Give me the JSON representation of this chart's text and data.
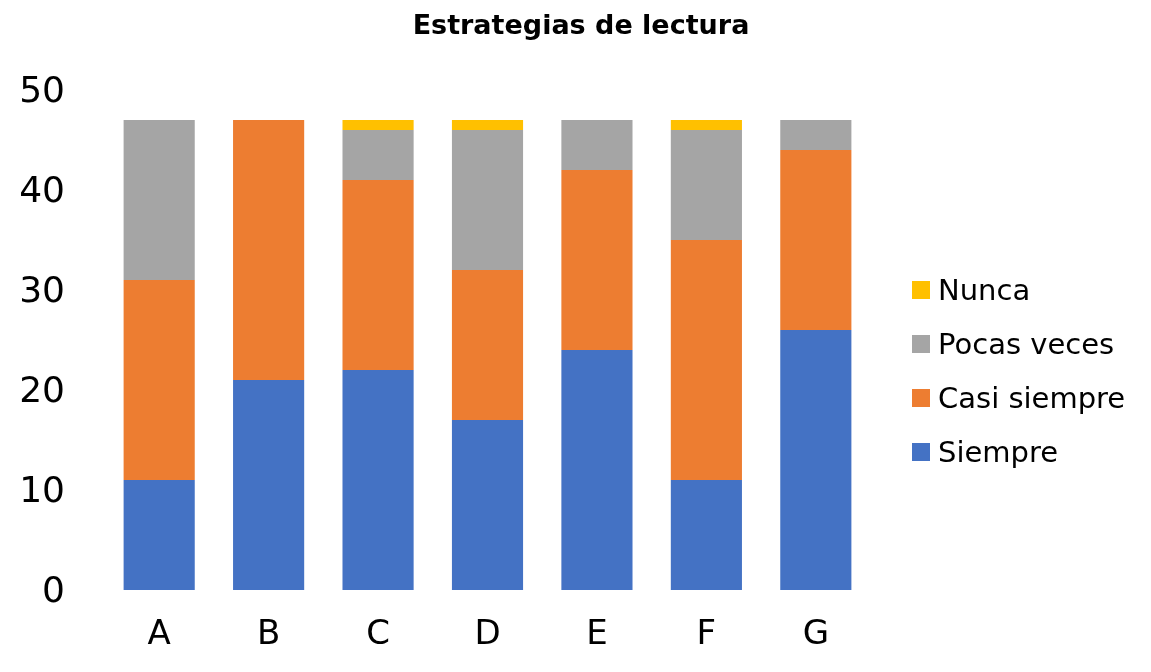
{
  "chart_data": {
    "type": "bar",
    "title": "Estrategias de lectura",
    "stacked": true,
    "categories": [
      "A",
      "B",
      "C",
      "D",
      "E",
      "F",
      "G"
    ],
    "series": [
      {
        "name": "Siempre",
        "color": "#4472c4",
        "values": [
          11,
          21,
          22,
          17,
          24,
          11,
          26
        ]
      },
      {
        "name": "Casi siempre",
        "color": "#ed7d31",
        "values": [
          20,
          26,
          19,
          15,
          18,
          24,
          18
        ]
      },
      {
        "name": "Pocas veces",
        "color": "#a5a5a5",
        "values": [
          16,
          0,
          5,
          14,
          5,
          11,
          3
        ]
      },
      {
        "name": "Nunca",
        "color": "#ffc000",
        "values": [
          0,
          0,
          1,
          1,
          0,
          1,
          0
        ]
      }
    ],
    "ylim": [
      0,
      50
    ],
    "yticks": [
      0,
      10,
      20,
      30,
      40,
      50
    ],
    "grid": false,
    "legend": "right"
  }
}
